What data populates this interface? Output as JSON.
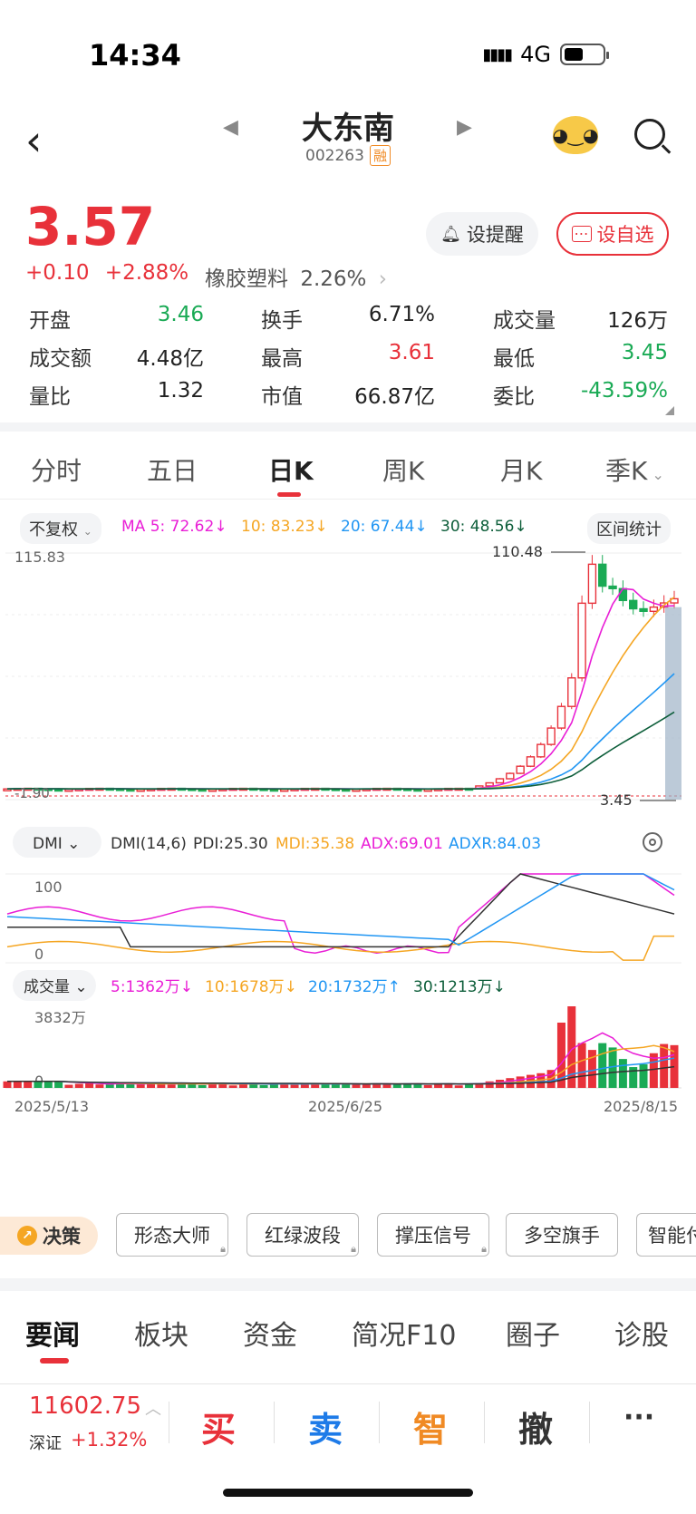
{
  "status": {
    "time": "14:34",
    "network": "4G"
  },
  "header": {
    "title": "大东南",
    "code": "002263",
    "badge": "融"
  },
  "quote": {
    "price": "3.57",
    "change": "+0.10",
    "change_pct": "+2.88%",
    "sector": "橡胶塑料",
    "sector_pct": "2.26%",
    "alert_label": "设提醒",
    "watch_label": "设自选",
    "metrics": [
      {
        "label": "开盘",
        "value": "3.46",
        "color": "green"
      },
      {
        "label": "换手",
        "value": "6.71%",
        "color": "normal"
      },
      {
        "label": "成交量",
        "value": "126万",
        "color": "normal"
      },
      {
        "label": "成交额",
        "value": "4.48亿",
        "color": "normal"
      },
      {
        "label": "最高",
        "value": "3.61",
        "color": "red"
      },
      {
        "label": "最低",
        "value": "3.45",
        "color": "green"
      },
      {
        "label": "量比",
        "value": "1.32",
        "color": "normal"
      },
      {
        "label": "市值",
        "value": "66.87亿",
        "color": "normal"
      },
      {
        "label": "委比",
        "value": "-43.59%",
        "color": "green"
      }
    ]
  },
  "period_tabs": [
    "分时",
    "五日",
    "日K",
    "周K",
    "月K",
    "季K"
  ],
  "active_period": "日K",
  "ma_row": {
    "adjust": "不复权",
    "ma5": "MA 5: 72.62↓",
    "ma10": "10: 83.23↓",
    "ma20": "20: 67.44↓",
    "ma30": "30: 48.56↓",
    "stats": "区间统计"
  },
  "chart_data": {
    "type": "candlestick",
    "price_axis": {
      "max_label": "115.83",
      "min_label": "-1.90",
      "high_marker": "110.48",
      "low_marker": "3.45"
    },
    "dmi": {
      "selector": "DMI",
      "params": "DMI(14,6)",
      "pdi": "PDI:25.30",
      "mdi": "MDI:35.38",
      "adx": "ADX:69.01",
      "adxr": "ADXR:84.03",
      "axis_top": "100",
      "axis_bottom": "0"
    },
    "volume": {
      "selector": "成交量",
      "ma5": "5:1362万↓",
      "ma10": "10:1678万↓",
      "ma20": "20:1732万↑",
      "ma30": "30:1213万↓",
      "axis_top": "3832万",
      "axis_bottom": "0"
    },
    "dates": [
      "2025/5/13",
      "2025/6/25",
      "2025/8/15"
    ],
    "colors": {
      "up": "#e8313a",
      "down": "#1aaa55",
      "ma5": "#e91ed6",
      "ma10": "#f5a623",
      "ma20": "#2196f3",
      "ma30": "#0d5e3a"
    }
  },
  "strategy": {
    "decision": "决策",
    "buttons": [
      "形态大师",
      "红绿波段",
      "撑压信号",
      "多空旗手",
      "智能付"
    ]
  },
  "news_tabs": [
    "要闻",
    "板块",
    "资金",
    "简况F10",
    "圈子",
    "诊股"
  ],
  "bottom": {
    "index_value": "11602.75",
    "index_name": "深证",
    "index_change": "+1.32%",
    "buy": "买",
    "sell": "卖",
    "smart": "智",
    "cancel": "撤",
    "more": "···"
  }
}
